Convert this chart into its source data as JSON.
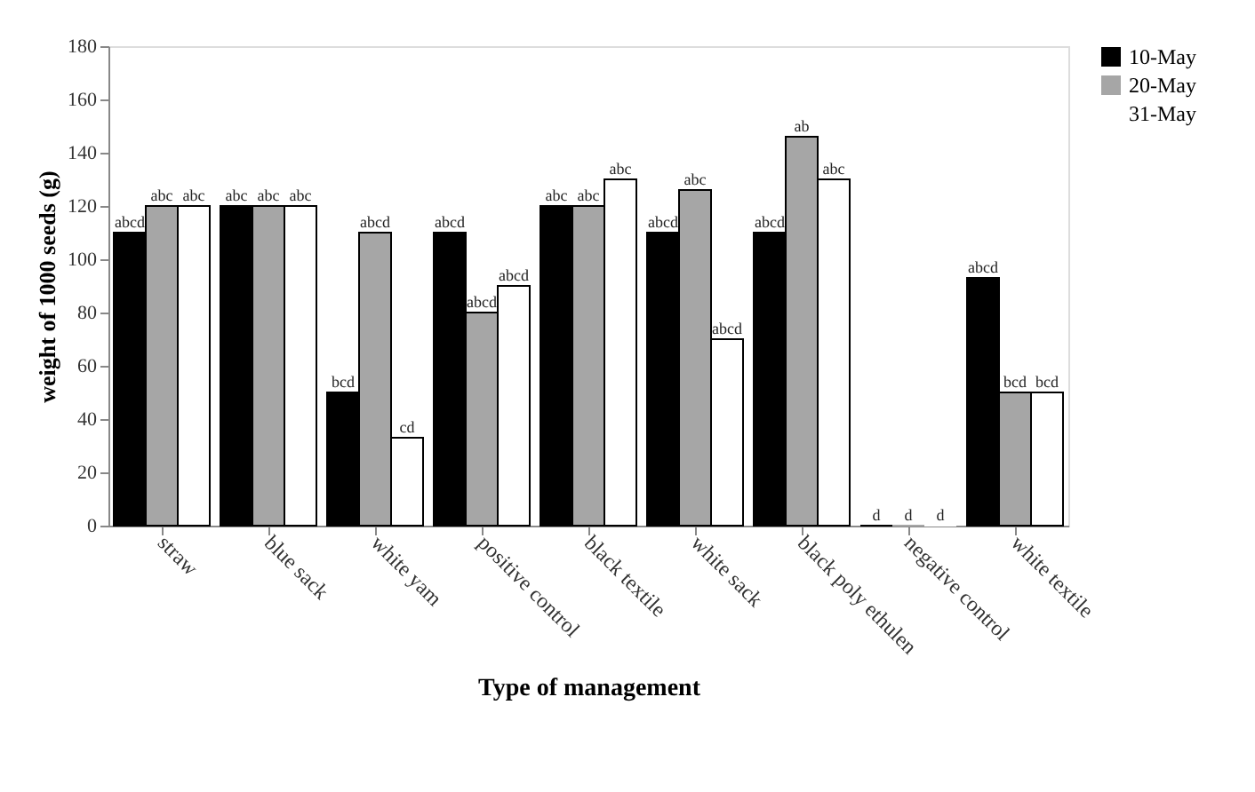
{
  "chart_data": {
    "type": "bar",
    "xlabel": "Type of management",
    "ylabel": "weight  of 1000 seeds (g)",
    "categories": [
      "straw",
      "blue sack",
      "white yam",
      "positive control",
      "black textile",
      "white sack",
      "black poly ethulen",
      "negative control",
      "white textile"
    ],
    "series": [
      {
        "name": "10-May",
        "color": "#000000",
        "values": [
          110,
          120,
          50,
          110,
          120,
          110,
          110,
          0,
          93
        ],
        "value_labels": [
          "abcd",
          "abc",
          "bcd",
          "abcd",
          "abc",
          "abcd",
          "abcd",
          "d",
          "abcd"
        ]
      },
      {
        "name": "20-May",
        "color": "#a6a6a6",
        "values": [
          120,
          120,
          110,
          80,
          120,
          126,
          146,
          0,
          50
        ],
        "value_labels": [
          "abc",
          "abc",
          "abcd",
          "abcd",
          "abc",
          "abc",
          "ab",
          "d",
          "bcd"
        ]
      },
      {
        "name": "31-May",
        "color": "#ffffff",
        "values": [
          120,
          120,
          33,
          90,
          130,
          70,
          130,
          0,
          50
        ],
        "value_labels": [
          "abc",
          "abc",
          "cd",
          "abcd",
          "abc",
          "abcd",
          "abc",
          "d",
          "bcd"
        ]
      }
    ],
    "ylim": [
      0,
      180
    ],
    "yticks": [
      0,
      20,
      40,
      60,
      80,
      100,
      120,
      140,
      160,
      180
    ],
    "grid": false,
    "legend": "right"
  }
}
